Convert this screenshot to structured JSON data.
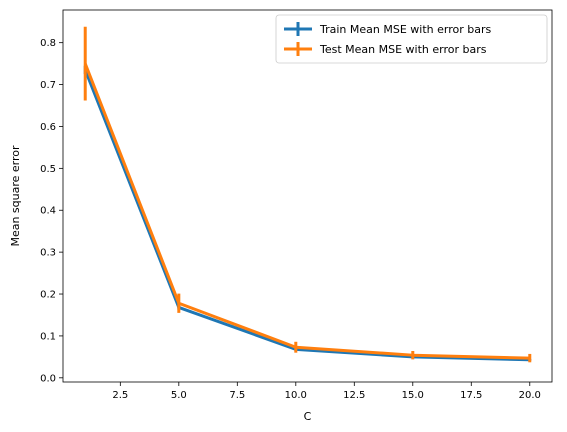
{
  "chart_data": {
    "type": "line",
    "xlabel": "C",
    "ylabel": "Mean square error",
    "xlim": [
      0.05,
      20.95
    ],
    "ylim": [
      -0.01,
      0.878
    ],
    "xticks": [
      2.5,
      5.0,
      7.5,
      10.0,
      12.5,
      15.0,
      17.5,
      20.0
    ],
    "xtick_labels": [
      "2.5",
      "5.0",
      "7.5",
      "10.0",
      "12.5",
      "15.0",
      "17.5",
      "20.0"
    ],
    "yticks": [
      0.0,
      0.1,
      0.2,
      0.3,
      0.4,
      0.5,
      0.6,
      0.7,
      0.8
    ],
    "ytick_labels": [
      "0.0",
      "0.1",
      "0.2",
      "0.3",
      "0.4",
      "0.5",
      "0.6",
      "0.7",
      "0.8"
    ],
    "grid": false,
    "legend_position": "top-right",
    "series": [
      {
        "name": "Train Mean MSE with error bars",
        "color": "#1f77b4",
        "x": [
          1,
          5,
          10,
          15,
          20
        ],
        "y": [
          0.735,
          0.168,
          0.068,
          0.05,
          0.043
        ],
        "yerr": [
          0.01,
          0.005,
          0.003,
          0.002,
          0.002
        ]
      },
      {
        "name": "Test Mean MSE with error bars",
        "color": "#ff7f0e",
        "x": [
          1,
          5,
          10,
          15,
          20
        ],
        "y": [
          0.75,
          0.178,
          0.073,
          0.054,
          0.047
        ],
        "yerr": [
          0.088,
          0.023,
          0.013,
          0.01,
          0.01
        ]
      }
    ]
  }
}
